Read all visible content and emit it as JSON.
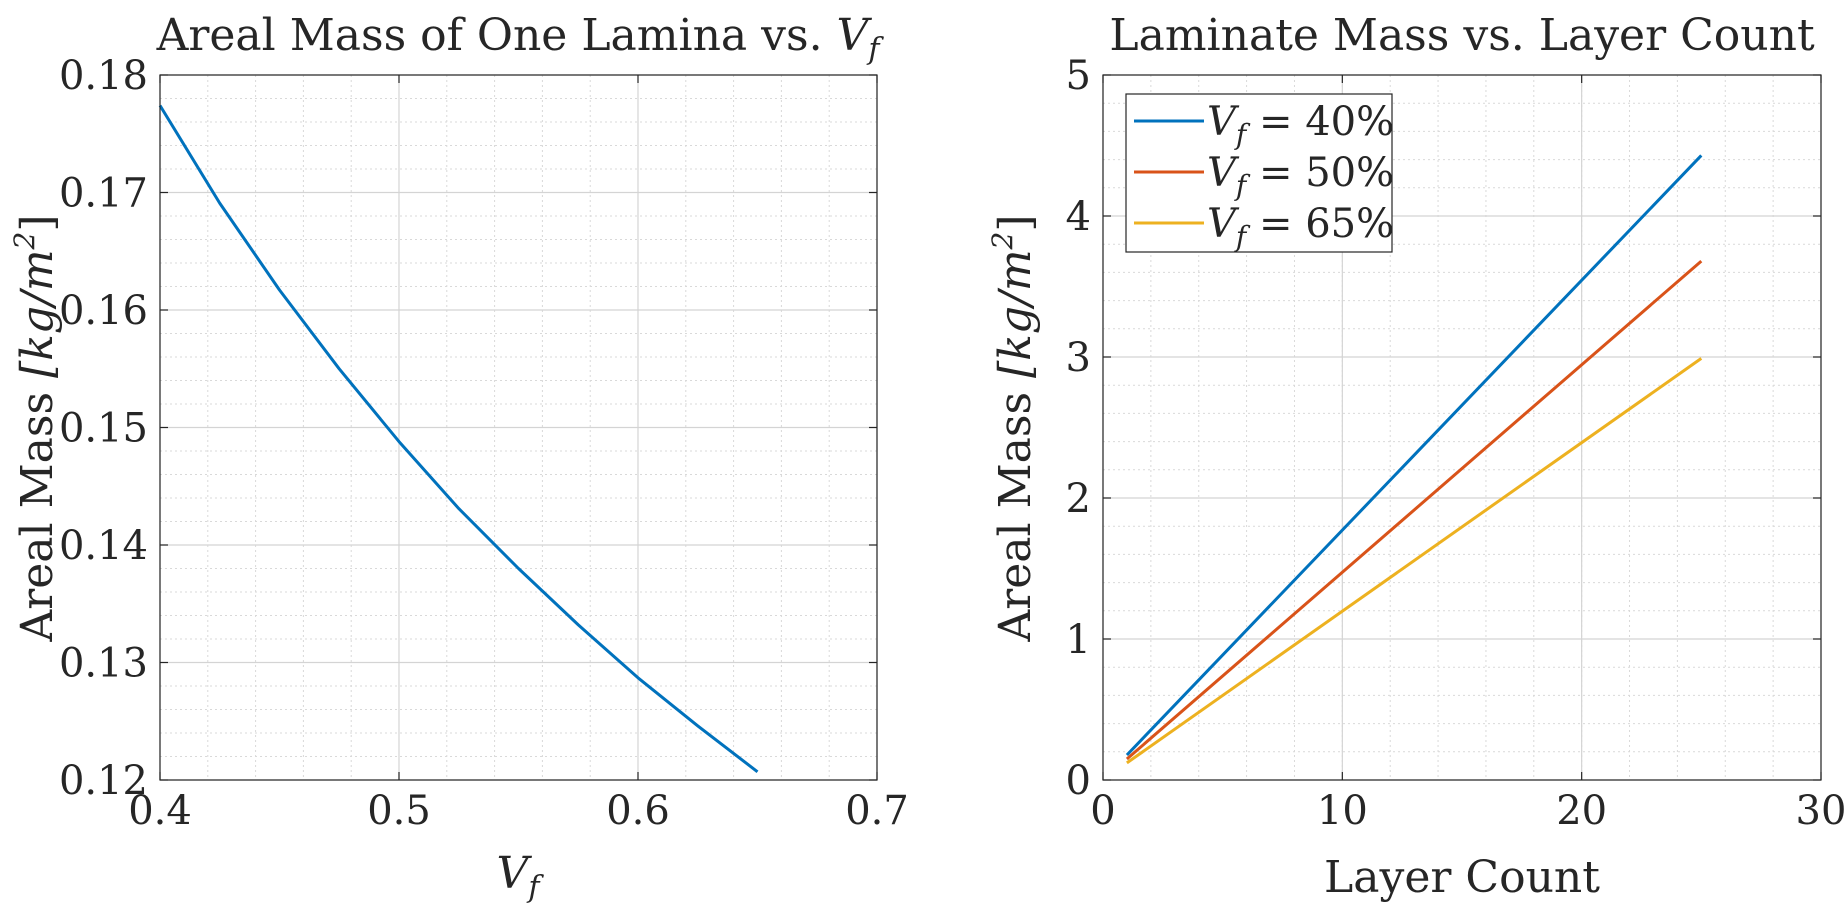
{
  "chart_data": [
    {
      "type": "line",
      "title": "Areal Mass of One Lamina vs. ",
      "title_math_base": "V",
      "title_math_sub": "f",
      "xlabel_math_base": "V",
      "xlabel_math_sub": "f",
      "ylabel": "Areal Mass ",
      "ylabel_math": "[kg/m",
      "ylabel_math_sup": "2",
      "ylabel_math_close": "]",
      "xlim": [
        0.4,
        0.7
      ],
      "ylim": [
        0.12,
        0.18
      ],
      "xticks": [
        0.4,
        0.5,
        0.6,
        0.7
      ],
      "xtick_labels": [
        "0.4",
        "0.5",
        "0.6",
        "0.7"
      ],
      "yticks": [
        0.12,
        0.13,
        0.14,
        0.15,
        0.16,
        0.17,
        0.18
      ],
      "ytick_labels": [
        "0.12",
        "0.13",
        "0.14",
        "0.15",
        "0.16",
        "0.17",
        "0.18"
      ],
      "grid": true,
      "minor_grid": true,
      "series": [
        {
          "color": "#0072BD",
          "x": [
            0.4,
            0.425,
            0.45,
            0.475,
            0.5,
            0.525,
            0.55,
            0.575,
            0.6,
            0.625,
            0.65
          ],
          "y": [
            0.1774,
            0.1691,
            0.1617,
            0.155,
            0.1488,
            0.1431,
            0.138,
            0.1332,
            0.1287,
            0.1246,
            0.1207
          ]
        }
      ]
    },
    {
      "type": "line",
      "title": "Laminate Mass vs. Layer Count",
      "xlabel": "Layer Count",
      "ylabel": "Areal Mass ",
      "ylabel_math": "[kg/m",
      "ylabel_math_sup": "2",
      "ylabel_math_close": "]",
      "xlim": [
        0,
        30
      ],
      "ylim": [
        0,
        5
      ],
      "xticks": [
        0,
        10,
        20,
        30
      ],
      "xtick_labels": [
        "0",
        "10",
        "20",
        "30"
      ],
      "yticks": [
        0,
        1,
        2,
        3,
        4,
        5
      ],
      "ytick_labels": [
        "0",
        "1",
        "2",
        "3",
        "4",
        "5"
      ],
      "grid": true,
      "minor_grid": true,
      "legend_position": "top-left",
      "series": [
        {
          "name_math_base": "V",
          "name_math_sub": "f",
          "name_rest": " = 40%",
          "color": "#0072BD",
          "x": [
            1,
            25
          ],
          "y": [
            0.177,
            4.43
          ]
        },
        {
          "name_math_base": "V",
          "name_math_sub": "f",
          "name_rest": " = 50%",
          "color": "#D95319",
          "x": [
            1,
            25
          ],
          "y": [
            0.149,
            3.68
          ]
        },
        {
          "name_math_base": "V",
          "name_math_sub": "f",
          "name_rest": " = 65%",
          "color": "#EDB120",
          "x": [
            1,
            25
          ],
          "y": [
            0.121,
            2.99
          ]
        }
      ]
    }
  ]
}
